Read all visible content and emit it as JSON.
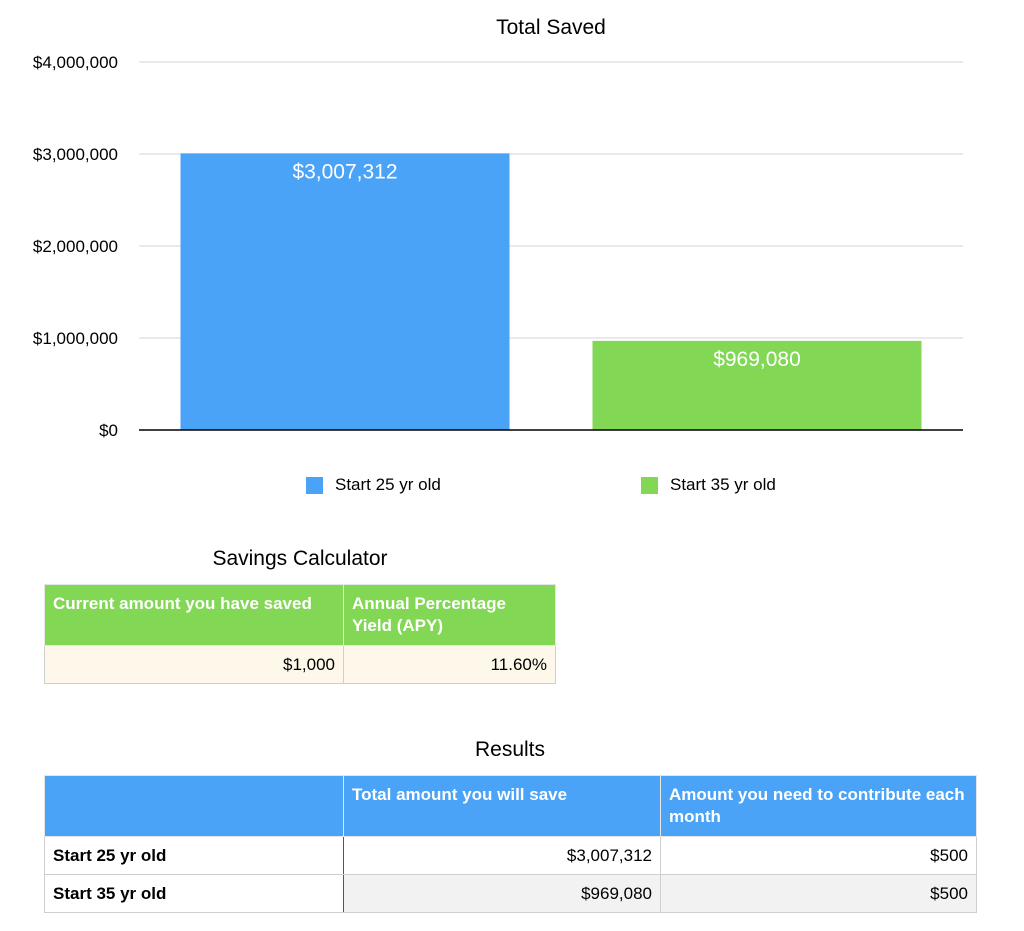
{
  "chart_data": {
    "type": "bar",
    "title": "Total Saved",
    "categories": [
      "Start 25 yr old",
      "Start 35 yr old"
    ],
    "values": [
      3007312,
      969080
    ],
    "data_labels": [
      "$3,007,312",
      "$969,080"
    ],
    "colors": [
      "#4aa3f7",
      "#82d754"
    ],
    "ylim": [
      0,
      4000000
    ],
    "yticks": [
      0,
      1000000,
      2000000,
      3000000,
      4000000
    ],
    "ytick_labels": [
      "$0",
      "$1,000,000",
      "$2,000,000",
      "$3,000,000",
      "$4,000,000"
    ],
    "grid": true,
    "legend_position": "bottom",
    "xlabel": "",
    "ylabel": ""
  },
  "calculator": {
    "title": "Savings Calculator",
    "header_color": "#82d754",
    "headers": [
      "Current amount you have saved",
      "Annual Percentage Yield (APY)"
    ],
    "values": [
      "$1,000",
      "11.60%"
    ]
  },
  "results": {
    "title": "Results",
    "header_color": "#4aa3f7",
    "headers": [
      "",
      "Total amount you will save",
      "Amount you need to contribute each month"
    ],
    "rows": [
      [
        "Start 25 yr old",
        "$3,007,312",
        "$500"
      ],
      [
        "Start 35 yr old",
        "$969,080",
        "$500"
      ]
    ]
  }
}
